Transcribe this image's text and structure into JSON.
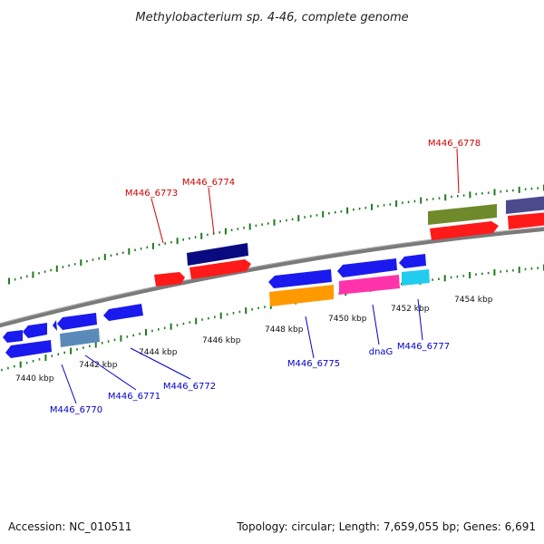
{
  "title": "Methylobacterium sp. 4-46, complete genome",
  "footer": {
    "accession": "Accession: NC_010511",
    "summary": "Topology: circular; Length: 7,659,055 bp; Genes: 6,691"
  },
  "colors": {
    "backbone": "#888888",
    "tick": "#1e7a1e",
    "forward_label": "#cc0000",
    "reverse_label": "#0000cc"
  },
  "scale_labels": [
    "7440 kbp",
    "7442 kbp",
    "7444 kbp",
    "7446 kbp",
    "7448 kbp",
    "7450 kbp",
    "7452 kbp",
    "7454 kbp"
  ],
  "forward_genes": [
    {
      "label": "M446_6773",
      "color": "#ff1a1a"
    },
    {
      "label": "M446_6774",
      "color": "#ff1a1a"
    },
    {
      "label": "",
      "color": "#0a0a80"
    },
    {
      "label": "M446_6778",
      "color": "#ff1a1a"
    },
    {
      "label": "",
      "color": "#6f8a2a"
    },
    {
      "label": "",
      "color": "#ff1a1a"
    },
    {
      "label": "",
      "color": "#4a4a8c"
    }
  ],
  "reverse_genes": [
    {
      "label": "M446_6770",
      "color": "#1a1aee"
    },
    {
      "label": "",
      "color": "#1a1aee"
    },
    {
      "label": "",
      "color": "#1a1aee"
    },
    {
      "label": "M446_6771",
      "color": "#1a1aee"
    },
    {
      "label": "",
      "color": "#5a8ab8"
    },
    {
      "label": "M446_6772",
      "color": "#1a1aee"
    },
    {
      "label": "M446_6775",
      "color": "#1a1aee"
    },
    {
      "label": "",
      "color": "#ff9900"
    },
    {
      "label": "dnaG",
      "color": "#1a1aee"
    },
    {
      "label": "",
      "color": "#ff33aa"
    },
    {
      "label": "M446_6777",
      "color": "#1a1aee"
    },
    {
      "label": "",
      "color": "#22ccee"
    }
  ]
}
